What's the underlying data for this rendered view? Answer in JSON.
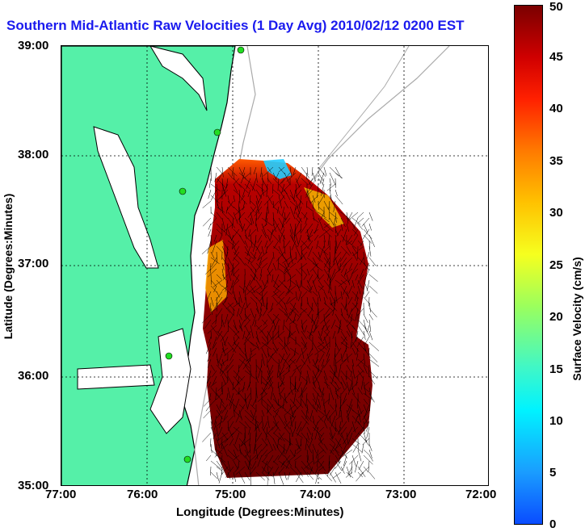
{
  "title": "Southern Mid-Atlantic Raw Velocities (1 Day Avg) 2010/02/12 0200 EST",
  "map": {
    "x_axis_label": "Longitude (Degrees:Minutes)",
    "y_axis_label": "Latitude (Degrees:Minutes)",
    "x_ticks": [
      "77:00",
      "76:00",
      "75:00",
      "74:00",
      "73:00",
      "72:00"
    ],
    "y_ticks": [
      "39:00",
      "38:00",
      "37:00",
      "36:00",
      "35:00"
    ],
    "colors": {
      "land": "#55f0a8",
      "coastline": "#000000",
      "bathymetry": "#aaaaaa",
      "vector": "#000000",
      "station": "#22dd22"
    }
  },
  "colorbar": {
    "label": "Surface Velocity (cm/s)",
    "ticks": [
      "50",
      "45",
      "40",
      "35",
      "30",
      "25",
      "20",
      "15",
      "10",
      "5",
      "0"
    ],
    "range": [
      0,
      50
    ]
  }
}
